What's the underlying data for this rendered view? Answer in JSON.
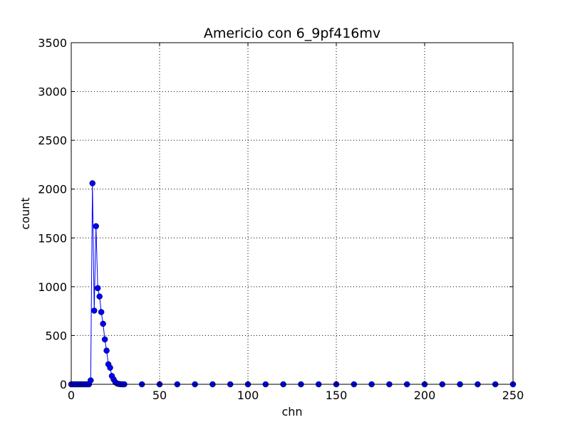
{
  "chart_data": {
    "type": "line",
    "title": "Americio con 6_9pf416mv",
    "xlabel": "chn",
    "ylabel": "count",
    "xlim": [
      0,
      250
    ],
    "ylim": [
      0,
      3500
    ],
    "x_ticks": [
      0,
      50,
      100,
      150,
      200,
      250
    ],
    "y_ticks": [
      0,
      500,
      1000,
      1500,
      2000,
      2500,
      3000,
      3500
    ],
    "grid": true,
    "marker": "circle",
    "colors": {
      "series": "#0000ff",
      "grid": "#000000",
      "axes": "#000000"
    },
    "series": [
      {
        "x": [
          0,
          1,
          2,
          3,
          4,
          5,
          6,
          7,
          8,
          9,
          10,
          11,
          12,
          13,
          14,
          15,
          16,
          17,
          18,
          19,
          20,
          21,
          22,
          23,
          24,
          25,
          26,
          27,
          28,
          29,
          30,
          40,
          50,
          60,
          70,
          80,
          90,
          100,
          110,
          120,
          130,
          140,
          150,
          160,
          170,
          180,
          190,
          200,
          210,
          220,
          230,
          240,
          250
        ],
        "y": [
          0,
          0,
          0,
          0,
          0,
          0,
          0,
          0,
          0,
          0,
          0,
          40,
          2060,
          755,
          1620,
          985,
          900,
          740,
          620,
          460,
          345,
          205,
          170,
          85,
          50,
          20,
          8,
          3,
          1,
          0,
          0,
          0,
          0,
          0,
          0,
          0,
          0,
          0,
          0,
          0,
          0,
          0,
          0,
          0,
          0,
          0,
          0,
          0,
          0,
          0,
          0,
          0,
          0
        ]
      }
    ]
  }
}
